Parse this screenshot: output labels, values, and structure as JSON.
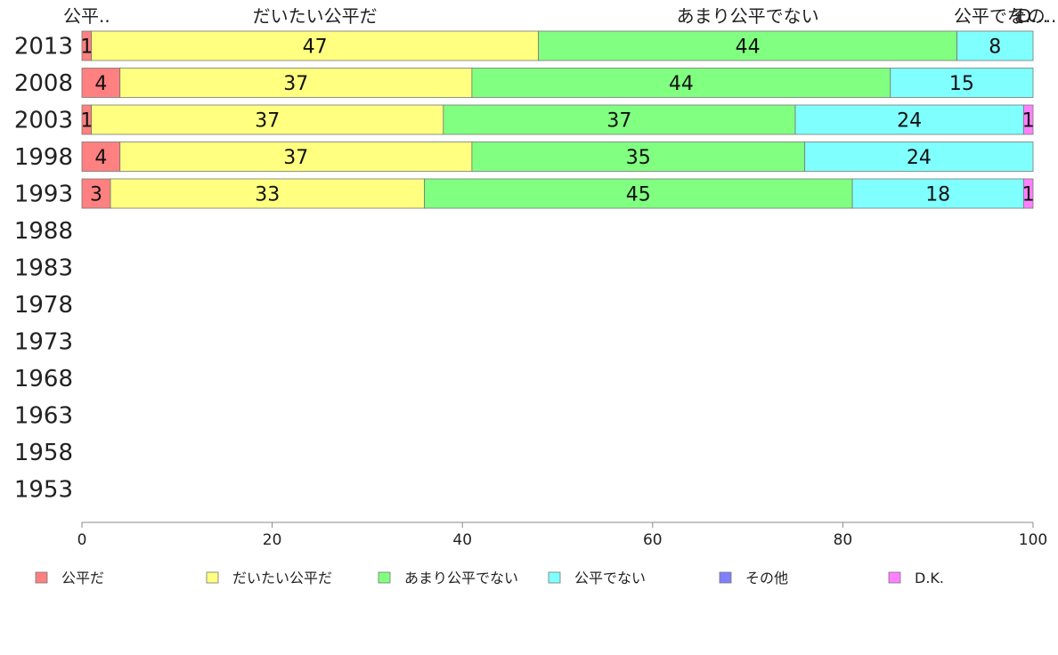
{
  "chart_data": {
    "type": "bar",
    "orientation": "horizontal",
    "stacked": true,
    "categories": [
      "2013",
      "2008",
      "2003",
      "1998",
      "1993",
      "1988",
      "1983",
      "1978",
      "1973",
      "1968",
      "1963",
      "1958",
      "1953"
    ],
    "series": [
      {
        "name": "公平だ",
        "color": "#ff8080",
        "values": [
          1,
          4,
          1,
          4,
          3,
          null,
          null,
          null,
          null,
          null,
          null,
          null,
          null
        ]
      },
      {
        "name": "だいたい公平だ",
        "color": "#ffff80",
        "values": [
          47,
          37,
          37,
          37,
          33,
          null,
          null,
          null,
          null,
          null,
          null,
          null,
          null
        ]
      },
      {
        "name": "あまり公平でない",
        "color": "#80ff80",
        "values": [
          44,
          44,
          37,
          35,
          45,
          null,
          null,
          null,
          null,
          null,
          null,
          null,
          null
        ]
      },
      {
        "name": "公平でない",
        "color": "#80ffff",
        "values": [
          8,
          15,
          24,
          24,
          18,
          null,
          null,
          null,
          null,
          null,
          null,
          null,
          null
        ]
      },
      {
        "name": "その他",
        "color": "#8080ff",
        "values": [
          0,
          0,
          0,
          0,
          0,
          null,
          null,
          null,
          null,
          null,
          null,
          null,
          null
        ]
      },
      {
        "name": "D.K.",
        "color": "#ff80ff",
        "values": [
          0,
          0,
          1,
          0,
          1,
          null,
          null,
          null,
          null,
          null,
          null,
          null,
          null
        ]
      }
    ],
    "header_labels": [
      "公平..",
      "だいたい公平だ",
      "あまり公平でない",
      "公平でな..",
      "その..",
      "D..."
    ],
    "xlim": [
      0,
      100
    ],
    "xticks": [
      0,
      20,
      40,
      60,
      80,
      100
    ],
    "grid": false,
    "legend_position": "bottom"
  }
}
